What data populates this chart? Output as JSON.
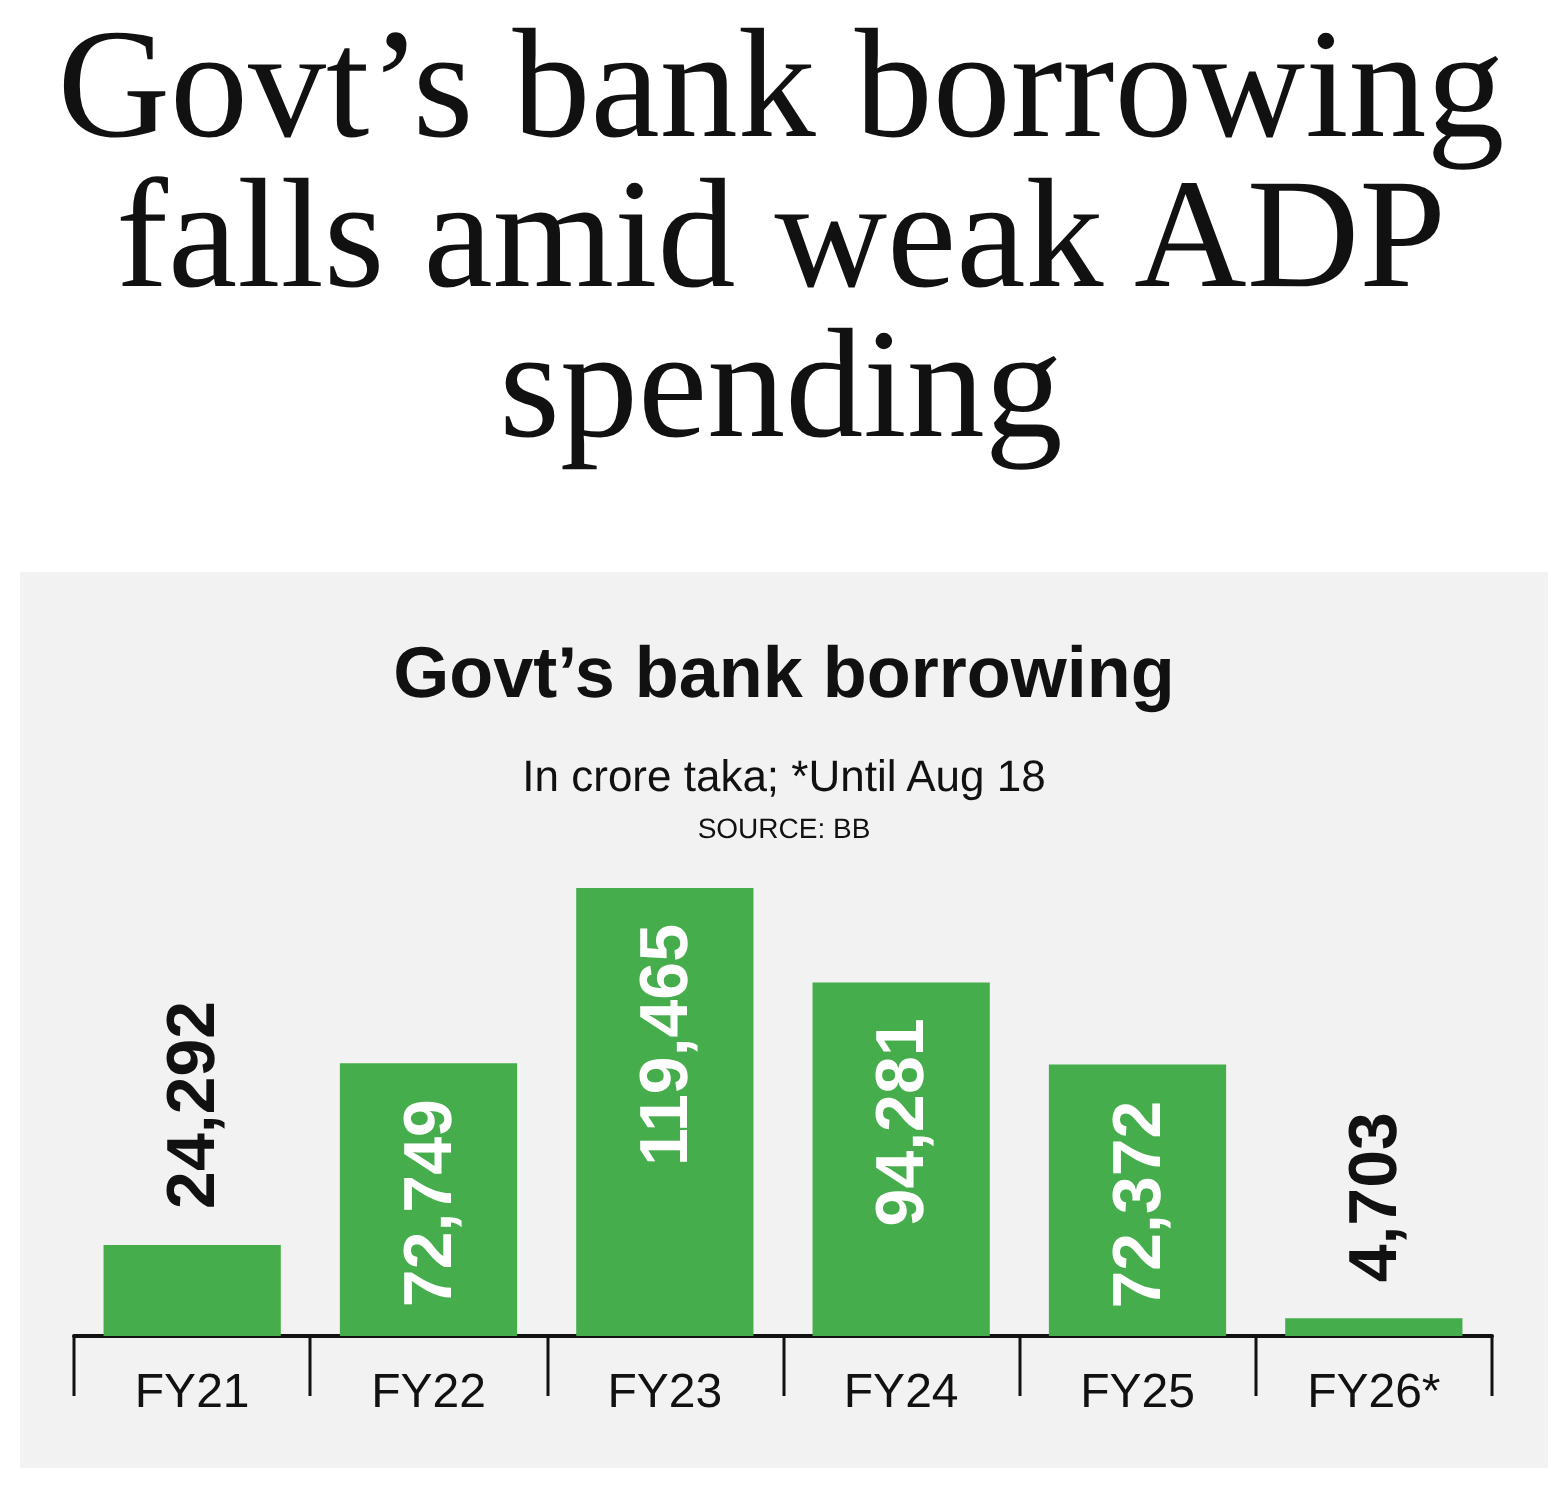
{
  "chart_data": {
    "type": "bar",
    "title": "Govt’s bank borrowing falls amid weak ADP spending",
    "subtitle": "Govt’s bank borrowing",
    "annotations": [
      "In crore taka; *Until Aug 18",
      "SOURCE: BB"
    ],
    "categories": [
      "FY21",
      "FY22",
      "FY23",
      "FY24",
      "FY25",
      "FY26*"
    ],
    "values": [
      24292,
      72749,
      119465,
      94281,
      72372,
      4703
    ],
    "value_labels": [
      "24,292",
      "72,749",
      "119,465",
      "94,281",
      "72,372",
      "4,703"
    ],
    "color": "#45ad4b"
  }
}
